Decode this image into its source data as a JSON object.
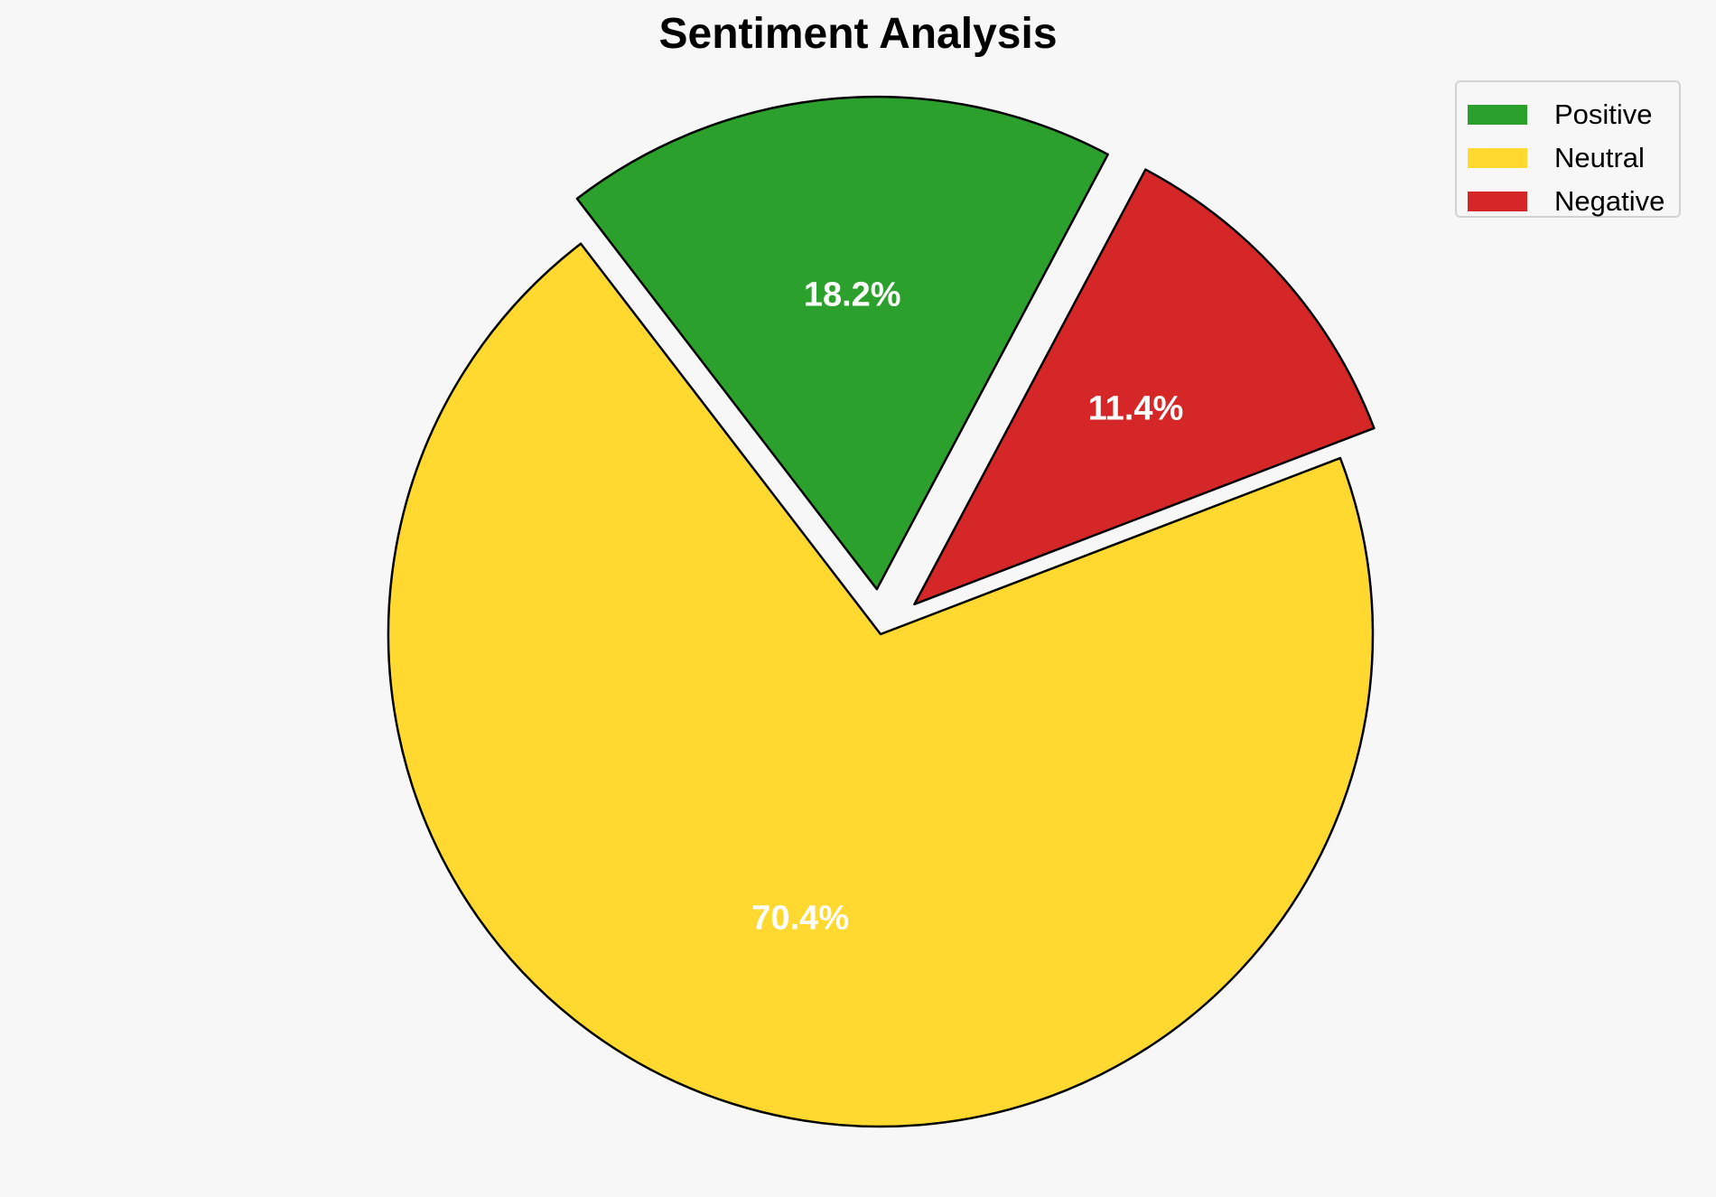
{
  "chart_data": {
    "type": "pie",
    "title": "Sentiment Analysis",
    "categories": [
      "Positive",
      "Neutral",
      "Negative"
    ],
    "values": [
      18.2,
      70.4,
      11.4
    ],
    "labels": [
      "18.2%",
      "70.4%",
      "11.4%"
    ],
    "colors": [
      "#2ca02c",
      "#ffd92f",
      "#d62728"
    ],
    "exploded": [
      true,
      false,
      true
    ],
    "edge_color": "#000000",
    "label_color": "#ffffff",
    "legend_position": "top-right"
  }
}
